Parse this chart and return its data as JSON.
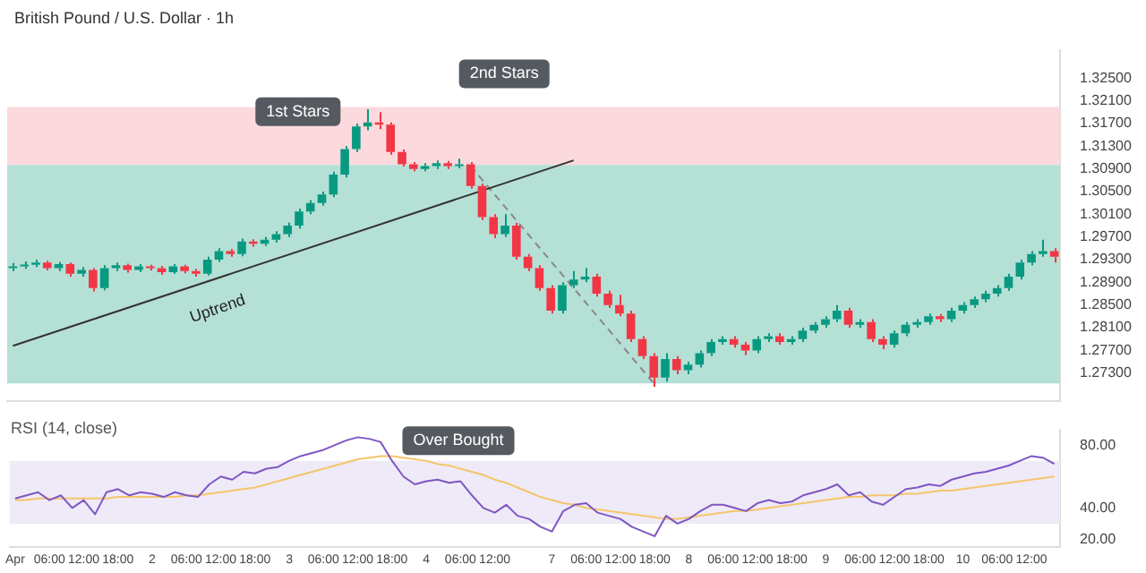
{
  "chart_data": [
    {
      "type": "candlestick",
      "title": "British Pound / U.S. Dollar · 1h",
      "categories": [
        null,
        null,
        null,
        null,
        null,
        null,
        null,
        null,
        null,
        null,
        null,
        null,
        null,
        null,
        null,
        null,
        null,
        null,
        null,
        null,
        null,
        null,
        null,
        null,
        null,
        null,
        null,
        null,
        null,
        null,
        null,
        null,
        null,
        null,
        null,
        null,
        null,
        null,
        null,
        null,
        null,
        null,
        null,
        null,
        null,
        null,
        null,
        null,
        null,
        null,
        null,
        null,
        null,
        null,
        null,
        null,
        null,
        null,
        null,
        null,
        null,
        null,
        null,
        null,
        null,
        null,
        null,
        null,
        null,
        null,
        null,
        null,
        null,
        null,
        null,
        null,
        null,
        null,
        null,
        null,
        null,
        null,
        null,
        null,
        null,
        null,
        null,
        null,
        null,
        null,
        null,
        null
      ],
      "ohlc": [
        [
          1.2915,
          1.2924,
          1.291,
          1.2918
        ],
        [
          1.2918,
          1.2927,
          1.2914,
          1.2921
        ],
        [
          1.2921,
          1.293,
          1.2917,
          1.2925
        ],
        [
          1.2925,
          1.2928,
          1.2911,
          1.2915
        ],
        [
          1.2915,
          1.2926,
          1.291,
          1.2922
        ],
        [
          1.2922,
          1.2925,
          1.29,
          1.2905
        ],
        [
          1.2905,
          1.2917,
          1.29,
          1.2912
        ],
        [
          1.2912,
          1.2915,
          1.2874,
          1.288
        ],
        [
          1.288,
          1.292,
          1.2876,
          1.2915
        ],
        [
          1.2915,
          1.2925,
          1.291,
          1.292
        ],
        [
          1.292,
          1.2923,
          1.2907,
          1.2912
        ],
        [
          1.2912,
          1.2922,
          1.2908,
          1.2918
        ],
        [
          1.2918,
          1.2921,
          1.2911,
          1.2915
        ],
        [
          1.2915,
          1.2919,
          1.2903,
          1.2908
        ],
        [
          1.2908,
          1.2922,
          1.2905,
          1.2918
        ],
        [
          1.2918,
          1.2921,
          1.2906,
          1.291
        ],
        [
          1.291,
          1.2914,
          1.29,
          1.2905
        ],
        [
          1.2905,
          1.2935,
          1.2902,
          1.293
        ],
        [
          1.293,
          1.295,
          1.2926,
          1.2945
        ],
        [
          1.2945,
          1.2949,
          1.2935,
          1.294
        ],
        [
          1.294,
          1.2967,
          1.2936,
          1.2962
        ],
        [
          1.2962,
          1.2966,
          1.2953,
          1.2958
        ],
        [
          1.2958,
          1.297,
          1.2954,
          1.2965
        ],
        [
          1.2965,
          1.298,
          1.296,
          1.2975
        ],
        [
          1.2975,
          1.2995,
          1.297,
          1.299
        ],
        [
          1.299,
          1.302,
          1.2985,
          1.3015
        ],
        [
          1.3015,
          1.3035,
          1.301,
          1.303
        ],
        [
          1.303,
          1.305,
          1.3025,
          1.3045
        ],
        [
          1.3045,
          1.3085,
          1.304,
          1.308
        ],
        [
          1.308,
          1.313,
          1.3075,
          1.3125
        ],
        [
          1.3125,
          1.317,
          1.312,
          1.3165
        ],
        [
          1.3165,
          1.3195,
          1.3158,
          1.3172
        ],
        [
          1.3172,
          1.319,
          1.316,
          1.3168
        ],
        [
          1.3168,
          1.3172,
          1.3115,
          1.312
        ],
        [
          1.312,
          1.3124,
          1.3094,
          1.3098
        ],
        [
          1.3098,
          1.3102,
          1.3086,
          1.309
        ],
        [
          1.309,
          1.31,
          1.3086,
          1.3095
        ],
        [
          1.3095,
          1.3105,
          1.309,
          1.31
        ],
        [
          1.31,
          1.3104,
          1.309,
          1.3095
        ],
        [
          1.3095,
          1.3108,
          1.3091,
          1.3098
        ],
        [
          1.3098,
          1.3102,
          1.3055,
          1.306
        ],
        [
          1.306,
          1.3064,
          1.3,
          1.3005
        ],
        [
          1.3005,
          1.301,
          1.2968,
          1.2975
        ],
        [
          1.2975,
          1.301,
          1.297,
          1.299
        ],
        [
          1.299,
          1.2995,
          1.293,
          1.2935
        ],
        [
          1.2935,
          1.294,
          1.291,
          1.2915
        ],
        [
          1.2915,
          1.292,
          1.2875,
          1.288
        ],
        [
          1.288,
          1.2885,
          1.2835,
          1.284
        ],
        [
          1.284,
          1.289,
          1.2835,
          1.2885
        ],
        [
          1.2885,
          1.291,
          1.288,
          1.2895
        ],
        [
          1.2895,
          1.2915,
          1.289,
          1.29
        ],
        [
          1.29,
          1.2905,
          1.2865,
          1.287
        ],
        [
          1.287,
          1.2875,
          1.2845,
          1.285
        ],
        [
          1.285,
          1.2868,
          1.283,
          1.2835
        ],
        [
          1.2835,
          1.284,
          1.2785,
          1.279
        ],
        [
          1.279,
          1.2795,
          1.2755,
          1.276
        ],
        [
          1.276,
          1.2765,
          1.2706,
          1.2722
        ],
        [
          1.2722,
          1.2765,
          1.2715,
          1.2755
        ],
        [
          1.2755,
          1.276,
          1.2728,
          1.2735
        ],
        [
          1.2735,
          1.275,
          1.2728,
          1.2745
        ],
        [
          1.2745,
          1.277,
          1.274,
          1.2765
        ],
        [
          1.2765,
          1.279,
          1.276,
          1.2785
        ],
        [
          1.2785,
          1.2795,
          1.278,
          1.279
        ],
        [
          1.279,
          1.2795,
          1.2775,
          1.278
        ],
        [
          1.278,
          1.2785,
          1.2762,
          1.277
        ],
        [
          1.277,
          1.2795,
          1.2765,
          1.279
        ],
        [
          1.279,
          1.28,
          1.2785,
          1.2795
        ],
        [
          1.2795,
          1.28,
          1.278,
          1.2785
        ],
        [
          1.2785,
          1.2795,
          1.278,
          1.279
        ],
        [
          1.279,
          1.281,
          1.2785,
          1.2805
        ],
        [
          1.2805,
          1.282,
          1.28,
          1.2815
        ],
        [
          1.2815,
          1.283,
          1.281,
          1.2825
        ],
        [
          1.2825,
          1.285,
          1.282,
          1.284
        ],
        [
          1.284,
          1.2845,
          1.281,
          1.2815
        ],
        [
          1.2815,
          1.2825,
          1.281,
          1.282
        ],
        [
          1.282,
          1.2825,
          1.2785,
          1.279
        ],
        [
          1.279,
          1.2795,
          1.2772,
          1.278
        ],
        [
          1.278,
          1.2805,
          1.2775,
          1.28
        ],
        [
          1.28,
          1.282,
          1.2795,
          1.2815
        ],
        [
          1.2815,
          1.2825,
          1.281,
          1.282
        ],
        [
          1.282,
          1.2835,
          1.2815,
          1.283
        ],
        [
          1.283,
          1.2834,
          1.282,
          1.2825
        ],
        [
          1.2825,
          1.2845,
          1.282,
          1.284
        ],
        [
          1.284,
          1.2855,
          1.2835,
          1.285
        ],
        [
          1.285,
          1.2865,
          1.2845,
          1.286
        ],
        [
          1.286,
          1.2875,
          1.2855,
          1.287
        ],
        [
          1.287,
          1.2885,
          1.2865,
          1.288
        ],
        [
          1.288,
          1.2905,
          1.2875,
          1.29
        ],
        [
          1.29,
          1.293,
          1.2895,
          1.2925
        ],
        [
          1.2925,
          1.2945,
          1.292,
          1.294
        ],
        [
          1.294,
          1.2965,
          1.2935,
          1.2945
        ],
        [
          1.2945,
          1.295,
          1.2925,
          1.2935
        ]
      ],
      "series": [
        {
          "type": "line",
          "color": "#333333",
          "values": [
            1.2778,
            null,
            null,
            null,
            null,
            null,
            null,
            null,
            null,
            null,
            null,
            null,
            null,
            null,
            null,
            null,
            null,
            null,
            null,
            null,
            null,
            null,
            null,
            null,
            null,
            null,
            null,
            null,
            null,
            null,
            null,
            null,
            null,
            null,
            null,
            null,
            null,
            null,
            null,
            null,
            null,
            null,
            null,
            null,
            null,
            null,
            null,
            null,
            null,
            1.3105,
            null,
            null,
            null,
            null,
            null,
            null,
            null,
            null,
            null,
            null,
            null,
            null,
            null,
            null,
            null,
            null,
            null,
            null,
            null,
            null,
            null,
            null,
            null,
            null,
            null,
            null,
            null,
            null,
            null,
            null,
            null,
            null,
            null,
            null,
            null,
            null,
            null,
            null,
            null,
            null,
            null,
            null
          ]
        },
        {
          "type": "line",
          "color": "#888888",
          "line_style": "dashed",
          "values": [
            null,
            null,
            null,
            null,
            null,
            null,
            null,
            null,
            null,
            null,
            null,
            null,
            null,
            null,
            null,
            null,
            null,
            null,
            null,
            null,
            null,
            null,
            null,
            null,
            null,
            null,
            null,
            null,
            null,
            null,
            null,
            null,
            null,
            null,
            null,
            null,
            null,
            null,
            null,
            null,
            1.3095,
            null,
            null,
            null,
            null,
            null,
            null,
            null,
            null,
            null,
            null,
            null,
            null,
            null,
            null,
            null,
            1.2712,
            null,
            null,
            null,
            null,
            null,
            null,
            null,
            null,
            null,
            null,
            null,
            null,
            null,
            null,
            null,
            null,
            null,
            null,
            null,
            null,
            null,
            null,
            null,
            null,
            null,
            null,
            null,
            null,
            null,
            null,
            null,
            null,
            null,
            null,
            null
          ]
        }
      ],
      "ylim": [
        1.268,
        1.33
      ],
      "yticks": [
        {
          "value": 1.273,
          "label": "1.27300"
        },
        {
          "value": 1.277,
          "label": "1.27700"
        },
        {
          "value": 1.281,
          "label": "1.28100"
        },
        {
          "value": 1.285,
          "label": "1.28500"
        },
        {
          "value": 1.289,
          "label": "1.28900"
        },
        {
          "value": 1.293,
          "label": "1.29300"
        },
        {
          "value": 1.297,
          "label": "1.29700"
        },
        {
          "value": 1.301,
          "label": "1.30100"
        },
        {
          "value": 1.305,
          "label": "1.30500"
        },
        {
          "value": 1.309,
          "label": "1.30900"
        },
        {
          "value": 1.313,
          "label": "1.31300"
        },
        {
          "value": 1.317,
          "label": "1.31700"
        },
        {
          "value": 1.321,
          "label": "1.32100"
        },
        {
          "value": 1.325,
          "label": "1.32500"
        }
      ],
      "bands": [
        {
          "axis": "y",
          "from": 1.3097,
          "to": 1.3199,
          "color": "#fbd9dc"
        },
        {
          "axis": "y",
          "from": 1.2712,
          "to": 1.3097,
          "color": "#b5e0d6"
        }
      ],
      "annotations": [
        "1st Stars",
        "2nd Stars",
        "Uptrend"
      ],
      "tick_labels": "y"
    },
    {
      "type": "line",
      "title": "RSI (14, close)",
      "categories": [
        "Apr",
        null,
        null,
        "06:00",
        null,
        null,
        "12:00",
        null,
        null,
        "18:00",
        null,
        null,
        "2",
        null,
        null,
        "06:00",
        null,
        null,
        "12:00",
        null,
        null,
        "18:00",
        null,
        null,
        "3",
        null,
        null,
        "06:00",
        null,
        null,
        "12:00",
        null,
        null,
        "18:00",
        null,
        null,
        "4",
        null,
        null,
        "06:00",
        null,
        null,
        "12:00",
        null,
        null,
        null,
        null,
        "7",
        null,
        null,
        "06:00",
        null,
        null,
        "12:00",
        null,
        null,
        "18:00",
        null,
        null,
        "8",
        null,
        null,
        "06:00",
        null,
        null,
        "12:00",
        null,
        null,
        "18:00",
        null,
        null,
        "9",
        null,
        null,
        "06:00",
        null,
        null,
        "12:00",
        null,
        null,
        "18:00",
        null,
        null,
        "10",
        null,
        null,
        "06:00",
        null,
        null,
        "12:00",
        null,
        null
      ],
      "series": [
        {
          "color": "#7e57c2",
          "values": [
            46,
            48,
            50,
            45,
            48,
            40,
            45,
            36,
            50,
            52,
            48,
            50,
            49,
            47,
            50,
            48,
            47,
            55,
            60,
            58,
            63,
            62,
            65,
            66,
            70,
            73,
            75,
            77,
            80,
            83,
            85,
            84,
            82,
            70,
            60,
            55,
            57,
            58,
            56,
            57,
            48,
            40,
            37,
            42,
            35,
            33,
            28,
            25,
            38,
            42,
            43,
            37,
            35,
            33,
            28,
            25,
            22,
            35,
            30,
            33,
            38,
            42,
            42,
            40,
            38,
            43,
            45,
            43,
            44,
            48,
            50,
            52,
            55,
            48,
            50,
            44,
            42,
            47,
            52,
            53,
            55,
            54,
            58,
            60,
            62,
            63,
            65,
            67,
            70,
            73,
            72,
            68
          ]
        },
        {
          "color": "#f5c56b",
          "values": [
            45,
            45,
            46,
            46,
            46,
            46,
            46,
            46,
            46,
            47,
            47,
            47,
            47,
            47,
            47,
            48,
            48,
            49,
            50,
            51,
            52,
            53,
            55,
            57,
            59,
            61,
            63,
            65,
            67,
            69,
            71,
            72,
            73,
            73,
            72,
            71,
            70,
            68,
            67,
            65,
            63,
            61,
            58,
            56,
            53,
            50,
            47,
            45,
            43,
            42,
            40,
            39,
            38,
            37,
            36,
            35,
            34,
            33,
            33,
            34,
            35,
            36,
            37,
            38,
            38,
            39,
            40,
            41,
            42,
            43,
            44,
            45,
            46,
            47,
            47,
            48,
            48,
            48,
            49,
            49,
            50,
            51,
            51,
            52,
            53,
            54,
            55,
            56,
            57,
            58,
            59,
            60
          ]
        }
      ],
      "ylim": [
        15,
        90
      ],
      "yticks": [
        {
          "value": 20,
          "label": "20.00"
        },
        {
          "value": 40,
          "label": "40.00"
        },
        {
          "value": 80,
          "label": "80.00"
        }
      ],
      "bands": [
        {
          "axis": "y",
          "from": 30,
          "to": 70,
          "color": "#efeaf8"
        }
      ],
      "annotations": [
        "Over Bought"
      ]
    }
  ]
}
